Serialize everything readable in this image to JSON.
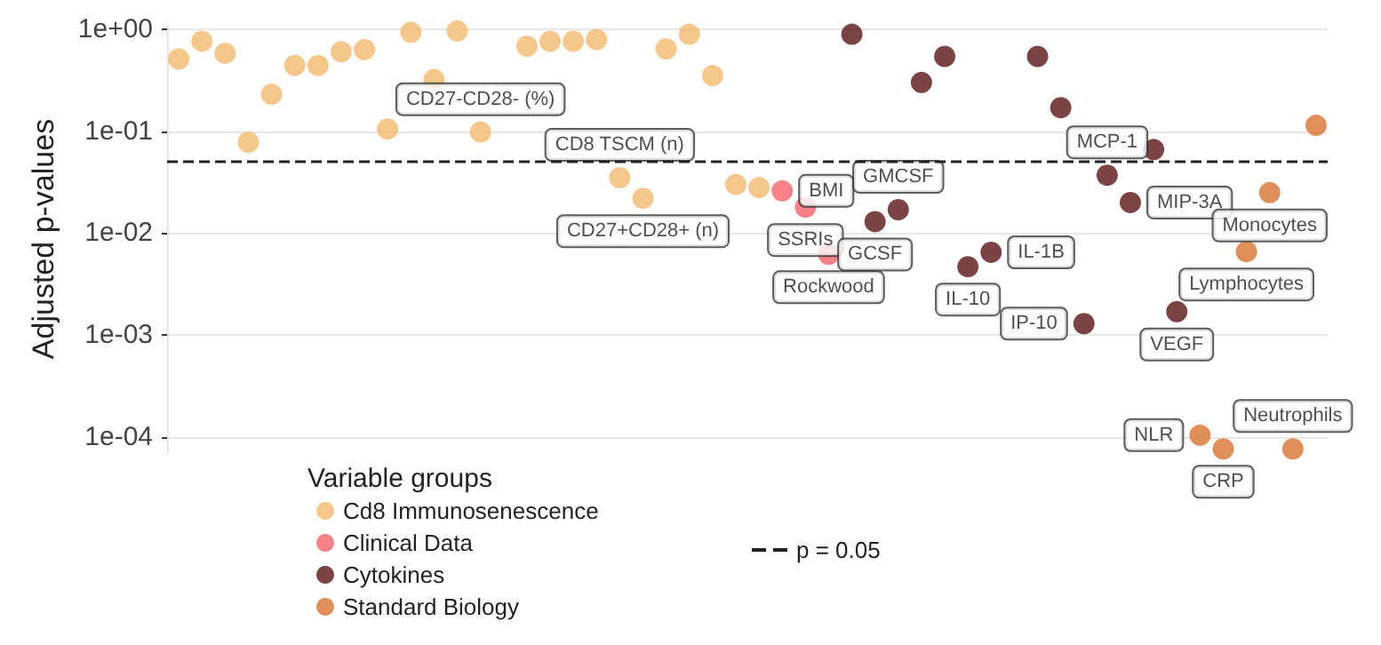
{
  "chart_data": {
    "type": "scatter",
    "ylabel": "Adjusted p-values",
    "legend_title": "Variable groups",
    "legend": "bottom",
    "grid": "y",
    "log": "y",
    "marker": "circle",
    "tick_labels": "y",
    "categories": [
      null,
      null,
      null,
      null,
      null,
      null,
      null,
      null,
      null,
      null,
      null,
      null,
      null,
      null,
      null,
      null,
      null,
      null,
      null,
      null,
      null,
      null,
      null,
      null,
      null,
      null,
      null,
      null,
      null,
      null,
      null,
      null,
      null,
      null,
      null,
      null,
      null,
      null,
      null,
      null,
      null,
      null,
      null,
      null,
      null,
      null,
      null,
      null,
      null,
      null
    ],
    "ylim": [
      7e-05,
      1.1
    ],
    "yticks": [
      {
        "value": 0.0001,
        "label": "1e-04"
      },
      {
        "value": 0.001,
        "label": "1e-03"
      },
      {
        "value": 0.01,
        "label": "1e-02"
      },
      {
        "value": 0.1,
        "label": "1e-01"
      },
      {
        "value": 1,
        "label": "1e+00"
      }
    ],
    "ref_lines": [
      {
        "axis": "y",
        "value": 0.05,
        "label": "p = 0.05",
        "line_style": "dashed",
        "color": "#222222"
      }
    ],
    "series": [
      {
        "name": "Cd8 Immunosenescence",
        "color": "#f2b96e",
        "values": [
          0.51,
          0.76,
          0.58,
          0.078,
          0.23,
          0.44,
          0.44,
          0.6,
          0.63,
          0.105,
          0.93,
          0.32,
          0.96,
          0.098,
          null,
          0.68,
          0.76,
          0.76,
          0.79,
          0.035,
          0.022,
          0.64,
          0.89,
          0.35,
          0.03,
          0.028,
          null,
          null,
          null,
          null,
          null,
          null,
          null,
          null,
          null,
          null,
          null,
          null,
          null,
          null,
          null,
          null,
          null,
          null,
          null,
          null,
          null,
          null,
          null,
          null
        ],
        "value_labels": [
          null,
          null,
          null,
          null,
          null,
          null,
          null,
          null,
          null,
          null,
          null,
          null,
          null,
          "CD27-CD28- (%)",
          null,
          null,
          null,
          null,
          null,
          "CD8 TSCM (n)",
          "CD27+CD28+ (n)",
          null,
          null,
          null,
          null,
          null,
          null,
          null,
          null,
          null,
          null,
          null,
          null,
          null,
          null,
          null,
          null,
          null,
          null,
          null,
          null,
          null,
          null,
          null,
          null,
          null,
          null,
          null,
          null,
          null
        ]
      },
      {
        "name": "Clinical Data",
        "color": "#f7636a",
        "values": [
          null,
          null,
          null,
          null,
          null,
          null,
          null,
          null,
          null,
          null,
          null,
          null,
          null,
          null,
          null,
          null,
          null,
          null,
          null,
          null,
          null,
          null,
          null,
          null,
          null,
          null,
          0.026,
          0.018,
          0.0062,
          null,
          null,
          null,
          null,
          null,
          null,
          null,
          null,
          null,
          null,
          null,
          null,
          null,
          null,
          null,
          null,
          null,
          null,
          null,
          null,
          null
        ],
        "value_labels": [
          null,
          null,
          null,
          null,
          null,
          null,
          null,
          null,
          null,
          null,
          null,
          null,
          null,
          null,
          null,
          null,
          null,
          null,
          null,
          null,
          null,
          null,
          null,
          null,
          null,
          null,
          "BMI",
          "SSRIs",
          "Rockwood",
          null,
          null,
          null,
          null,
          null,
          null,
          null,
          null,
          null,
          null,
          null,
          null,
          null,
          null,
          null,
          null,
          null,
          null,
          null,
          null,
          null
        ]
      },
      {
        "name": "Cytokines",
        "color": "#5a1414",
        "values": [
          null,
          null,
          null,
          null,
          null,
          null,
          null,
          null,
          null,
          null,
          null,
          null,
          null,
          null,
          null,
          null,
          null,
          null,
          null,
          null,
          null,
          null,
          null,
          null,
          null,
          null,
          null,
          null,
          null,
          0.89,
          0.013,
          0.017,
          0.3,
          0.54,
          0.0047,
          0.0065,
          null,
          0.54,
          0.17,
          0.0013,
          0.037,
          0.02,
          0.066,
          0.0017,
          null,
          null,
          null,
          null,
          null,
          null
        ],
        "value_labels": [
          null,
          null,
          null,
          null,
          null,
          null,
          null,
          null,
          null,
          null,
          null,
          null,
          null,
          null,
          null,
          null,
          null,
          null,
          null,
          null,
          null,
          null,
          null,
          null,
          null,
          null,
          null,
          null,
          null,
          null,
          "GCSF",
          "GMCSF",
          null,
          null,
          "IL-10",
          "IL-1B",
          null,
          null,
          null,
          "IP-10",
          "MCP-1",
          "MIP-3A",
          null,
          "VEGF",
          null,
          null,
          null,
          null,
          null,
          null
        ]
      },
      {
        "name": "Standard Biology",
        "color": "#d9732f",
        "values": [
          null,
          null,
          null,
          null,
          null,
          null,
          null,
          null,
          null,
          null,
          null,
          null,
          null,
          null,
          null,
          null,
          null,
          null,
          null,
          null,
          null,
          null,
          null,
          null,
          null,
          null,
          null,
          null,
          null,
          null,
          null,
          null,
          null,
          null,
          null,
          null,
          null,
          null,
          null,
          null,
          null,
          null,
          null,
          null,
          0.000105,
          7.7e-05,
          0.0066,
          0.025,
          7.7e-05,
          0.114
        ],
        "value_labels": [
          null,
          null,
          null,
          null,
          null,
          null,
          null,
          null,
          null,
          null,
          null,
          null,
          null,
          null,
          null,
          null,
          null,
          null,
          null,
          null,
          null,
          null,
          null,
          null,
          null,
          null,
          null,
          null,
          null,
          null,
          null,
          null,
          null,
          null,
          null,
          null,
          null,
          null,
          null,
          null,
          null,
          null,
          null,
          null,
          "NLR",
          "CRP",
          "Lymphocytes",
          "Monocytes",
          "Neutrophils",
          null
        ]
      }
    ]
  }
}
